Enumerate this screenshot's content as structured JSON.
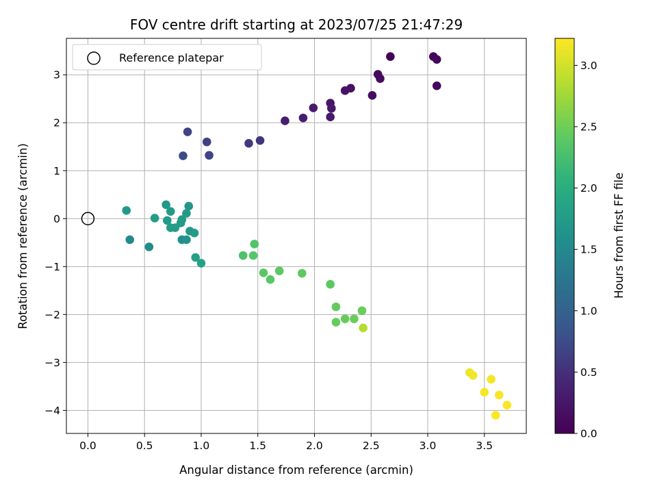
{
  "chart_data": {
    "type": "scatter",
    "title": "FOV centre drift starting at 2023/07/25 21:47:29",
    "xlabel": "Angular distance from reference (arcmin)",
    "ylabel": "Rotation from reference (arcmin)",
    "xlim": [
      -0.19,
      3.87
    ],
    "ylim": [
      -4.48,
      3.76
    ],
    "xticks": [
      0.0,
      0.5,
      1.0,
      1.5,
      2.0,
      2.5,
      3.0,
      3.5
    ],
    "xtick_labels": [
      "0.0",
      "0.5",
      "1.0",
      "1.5",
      "2.0",
      "2.5",
      "3.0",
      "3.5"
    ],
    "yticks": [
      -4,
      -3,
      -2,
      -1,
      0,
      1,
      2,
      3
    ],
    "ytick_labels": [
      "−4",
      "−3",
      "−2",
      "−1",
      "0",
      "1",
      "2",
      "3"
    ],
    "grid": true,
    "legend": {
      "position": "upper-left",
      "entries": [
        "Reference platepar"
      ]
    },
    "reference_point": {
      "x": 0.0,
      "y": 0.0
    },
    "colorbar": {
      "label": "Hours from first FF file",
      "colormap": "viridis",
      "range": [
        0.0,
        3.22
      ],
      "ticks": [
        0.0,
        0.5,
        1.0,
        1.5,
        2.0,
        2.5,
        3.0
      ],
      "tick_labels": [
        "0.0",
        "0.5",
        "1.0",
        "1.5",
        "2.0",
        "2.5",
        "3.0"
      ]
    },
    "points": [
      {
        "x": 2.67,
        "y": 3.38,
        "c": 0.03
      },
      {
        "x": 3.05,
        "y": 3.38,
        "c": 0.05
      },
      {
        "x": 3.08,
        "y": 3.32,
        "c": 0.07
      },
      {
        "x": 2.56,
        "y": 3.01,
        "c": 0.12
      },
      {
        "x": 2.58,
        "y": 2.92,
        "c": 0.13
      },
      {
        "x": 3.08,
        "y": 2.77,
        "c": 0.08
      },
      {
        "x": 2.27,
        "y": 2.67,
        "c": 0.22
      },
      {
        "x": 2.32,
        "y": 2.72,
        "c": 0.2
      },
      {
        "x": 2.51,
        "y": 2.57,
        "c": 0.15
      },
      {
        "x": 2.14,
        "y": 2.41,
        "c": 0.27
      },
      {
        "x": 2.15,
        "y": 2.3,
        "c": 0.28
      },
      {
        "x": 1.99,
        "y": 2.31,
        "c": 0.3
      },
      {
        "x": 2.14,
        "y": 2.12,
        "c": 0.29
      },
      {
        "x": 1.9,
        "y": 2.1,
        "c": 0.33
      },
      {
        "x": 1.74,
        "y": 2.04,
        "c": 0.35
      },
      {
        "x": 1.52,
        "y": 1.63,
        "c": 0.55
      },
      {
        "x": 1.42,
        "y": 1.57,
        "c": 0.57
      },
      {
        "x": 1.05,
        "y": 1.6,
        "c": 0.65
      },
      {
        "x": 0.88,
        "y": 1.81,
        "c": 0.68
      },
      {
        "x": 0.84,
        "y": 1.31,
        "c": 0.75
      },
      {
        "x": 1.07,
        "y": 1.32,
        "c": 0.7
      },
      {
        "x": 0.34,
        "y": 0.17,
        "c": 1.72
      },
      {
        "x": 0.59,
        "y": 0.01,
        "c": 1.77
      },
      {
        "x": 0.69,
        "y": 0.29,
        "c": 1.7
      },
      {
        "x": 0.73,
        "y": 0.15,
        "c": 1.74
      },
      {
        "x": 0.89,
        "y": 0.26,
        "c": 1.7
      },
      {
        "x": 0.87,
        "y": 0.11,
        "c": 1.73
      },
      {
        "x": 0.83,
        "y": -0.02,
        "c": 1.75
      },
      {
        "x": 0.82,
        "y": -0.09,
        "c": 1.76
      },
      {
        "x": 0.7,
        "y": -0.04,
        "c": 1.75
      },
      {
        "x": 0.73,
        "y": -0.19,
        "c": 1.78
      },
      {
        "x": 0.77,
        "y": -0.19,
        "c": 1.77
      },
      {
        "x": 0.9,
        "y": -0.26,
        "c": 1.74
      },
      {
        "x": 0.94,
        "y": -0.3,
        "c": 1.75
      },
      {
        "x": 0.37,
        "y": -0.44,
        "c": 1.5
      },
      {
        "x": 0.54,
        "y": -0.59,
        "c": 1.55
      },
      {
        "x": 0.83,
        "y": -0.44,
        "c": 1.6
      },
      {
        "x": 0.87,
        "y": -0.44,
        "c": 1.62
      },
      {
        "x": 0.95,
        "y": -0.81,
        "c": 1.82
      },
      {
        "x": 1.0,
        "y": -0.93,
        "c": 1.84
      },
      {
        "x": 1.37,
        "y": -0.77,
        "c": 2.3
      },
      {
        "x": 1.47,
        "y": -0.53,
        "c": 2.32
      },
      {
        "x": 1.46,
        "y": -0.77,
        "c": 2.35
      },
      {
        "x": 1.55,
        "y": -1.13,
        "c": 2.38
      },
      {
        "x": 1.61,
        "y": -1.27,
        "c": 2.38
      },
      {
        "x": 1.69,
        "y": -1.09,
        "c": 2.4
      },
      {
        "x": 1.89,
        "y": -1.14,
        "c": 2.42
      },
      {
        "x": 2.14,
        "y": -1.37,
        "c": 2.4
      },
      {
        "x": 2.19,
        "y": -1.84,
        "c": 2.44
      },
      {
        "x": 2.19,
        "y": -2.16,
        "c": 2.45
      },
      {
        "x": 2.27,
        "y": -2.09,
        "c": 2.46
      },
      {
        "x": 2.35,
        "y": -2.09,
        "c": 2.47
      },
      {
        "x": 2.42,
        "y": -1.92,
        "c": 2.47
      },
      {
        "x": 2.43,
        "y": -2.28,
        "c": 2.85
      },
      {
        "x": 3.37,
        "y": -3.21,
        "c": 3.15
      },
      {
        "x": 3.4,
        "y": -3.27,
        "c": 3.16
      },
      {
        "x": 3.56,
        "y": -3.35,
        "c": 3.17
      },
      {
        "x": 3.5,
        "y": -3.62,
        "c": 3.18
      },
      {
        "x": 3.63,
        "y": -3.68,
        "c": 3.19
      },
      {
        "x": 3.7,
        "y": -3.89,
        "c": 3.2
      },
      {
        "x": 3.6,
        "y": -4.1,
        "c": 3.21
      }
    ]
  }
}
